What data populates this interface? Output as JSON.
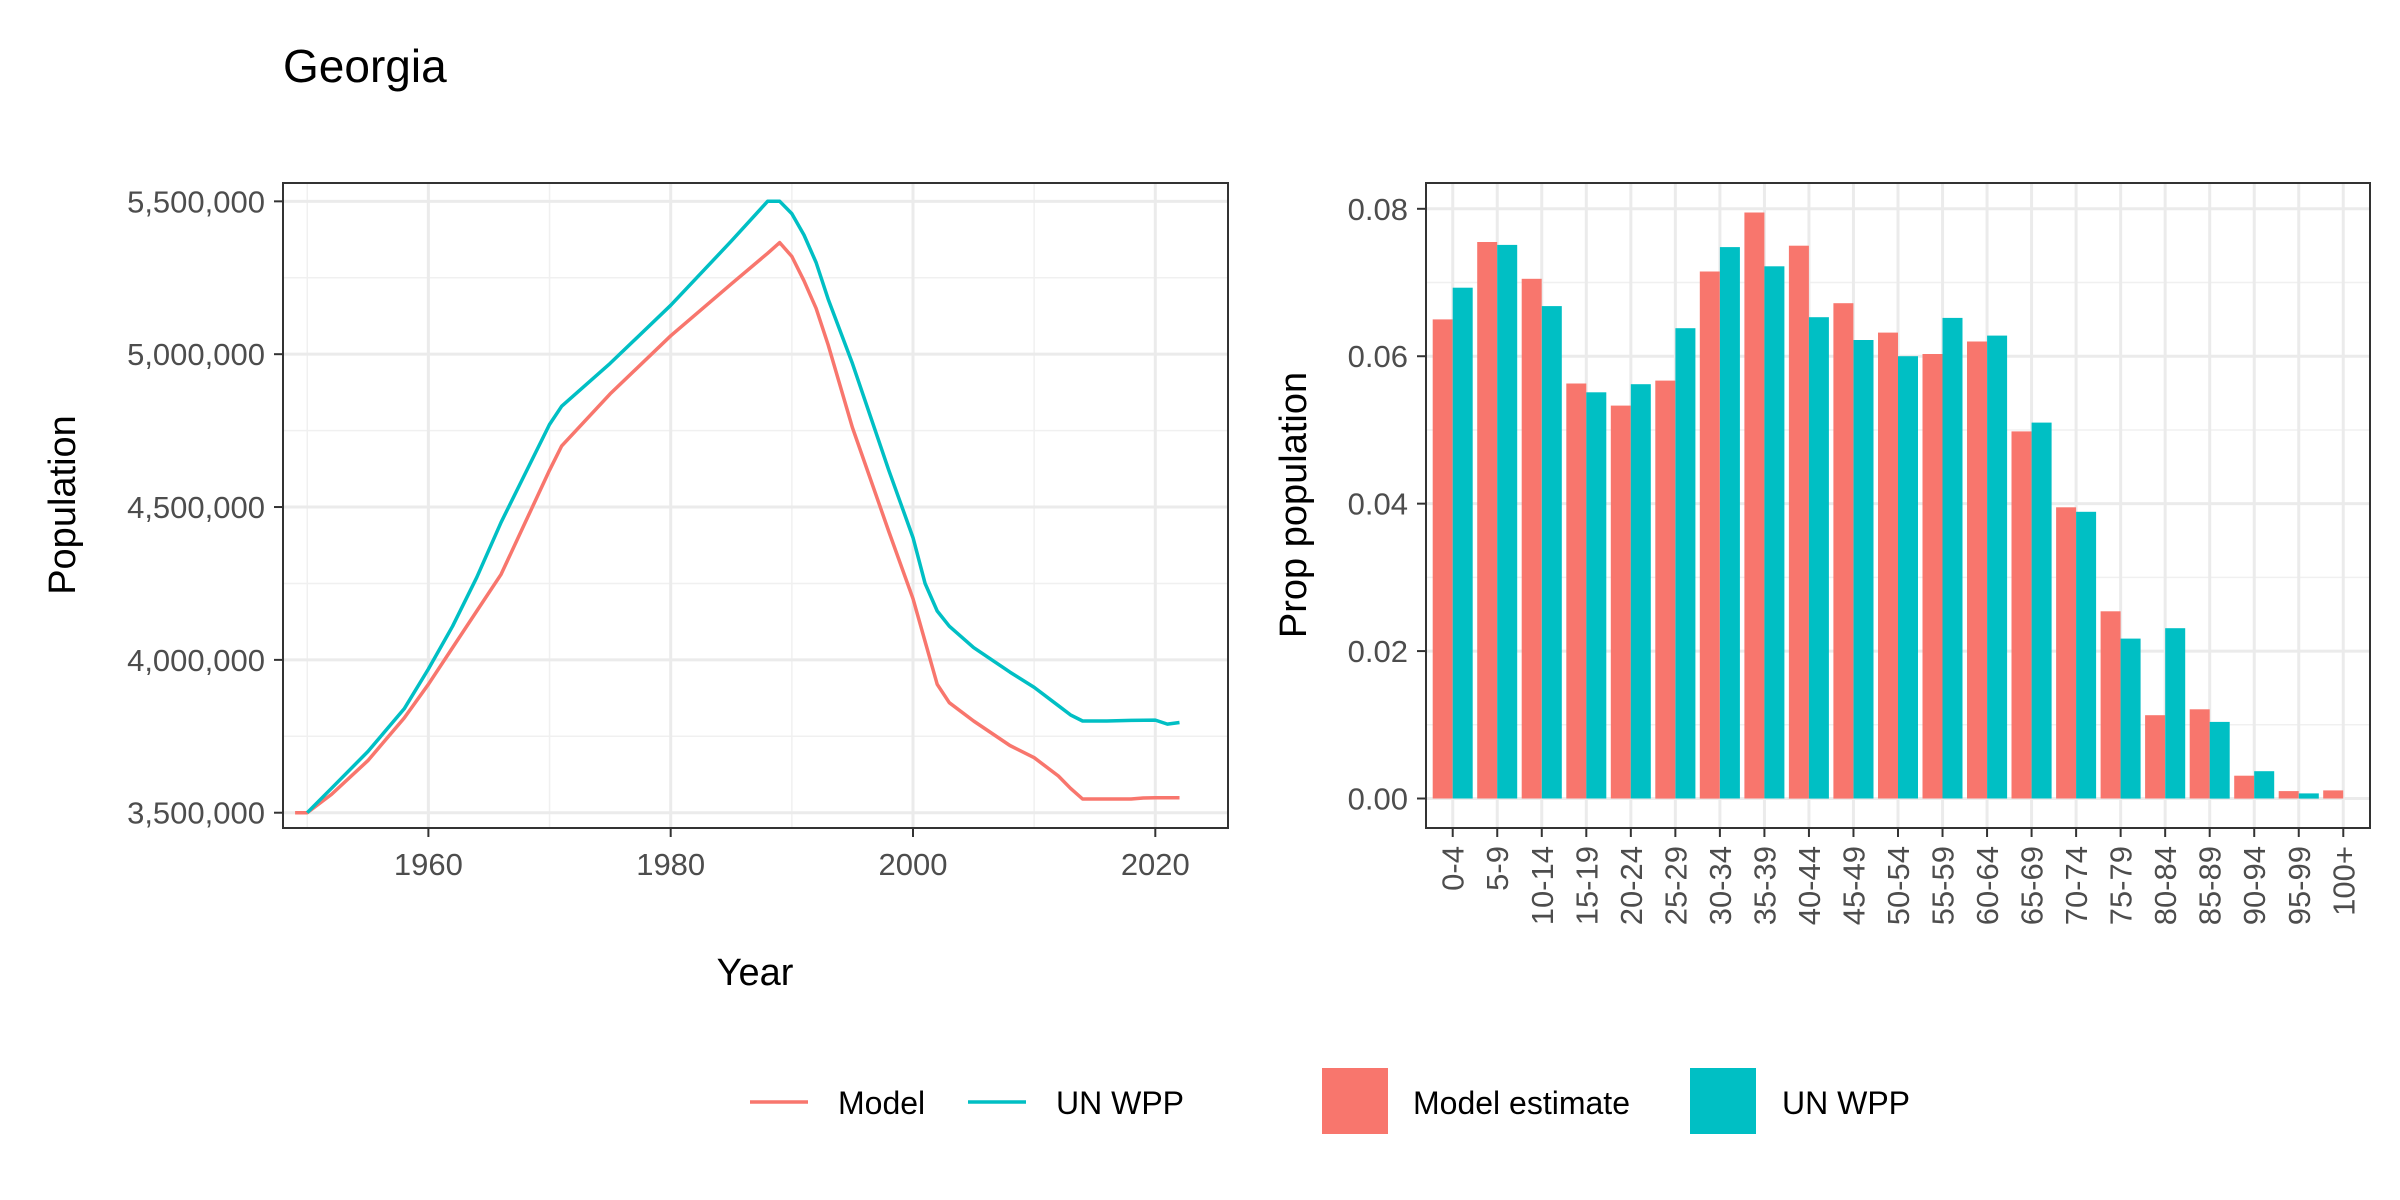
{
  "page": {
    "title": "Georgia"
  },
  "chart_data": [
    {
      "type": "line",
      "xlabel": "Year",
      "ylabel": "Population",
      "xlim": [
        1948,
        2026
      ],
      "ylim": [
        3450000,
        5560000
      ],
      "xticks": [
        1960,
        1980,
        2000,
        2020
      ],
      "xtick_labels": [
        "1960",
        "1980",
        "2000",
        "2020"
      ],
      "yticks": [
        3500000,
        4000000,
        4500000,
        5000000,
        5500000
      ],
      "ytick_labels": [
        "3,500,000",
        "4,000,000",
        "4,500,000",
        "5,000,000",
        "5,500,000"
      ],
      "grid": true,
      "legend_position": "bottom",
      "series": [
        {
          "name": "Model",
          "color": "#F8766D",
          "x": [
            1949,
            1950,
            1952,
            1955,
            1958,
            1960,
            1962,
            1964,
            1966,
            1968,
            1970,
            1971,
            1975,
            1980,
            1985,
            1988,
            1989,
            1990,
            1991,
            1992,
            1993,
            1995,
            1998,
            2000,
            2001,
            2002,
            2003,
            2005,
            2008,
            2010,
            2012,
            2013,
            2014,
            2016,
            2018,
            2019,
            2020,
            2021,
            2022
          ],
          "y": [
            3500000,
            3500000,
            3560000,
            3670000,
            3810000,
            3920000,
            4040000,
            4160000,
            4280000,
            4450000,
            4620000,
            4700000,
            4870000,
            5060000,
            5230000,
            5330000,
            5365000,
            5320000,
            5240000,
            5150000,
            5030000,
            4760000,
            4420000,
            4200000,
            4060000,
            3920000,
            3860000,
            3800000,
            3720000,
            3680000,
            3620000,
            3580000,
            3545000,
            3545000,
            3545000,
            3548000,
            3549000,
            3549000,
            3549000
          ]
        },
        {
          "name": "UN WPP",
          "color": "#00BFC4",
          "x": [
            1950,
            1952,
            1955,
            1958,
            1960,
            1962,
            1964,
            1966,
            1968,
            1970,
            1971,
            1975,
            1980,
            1985,
            1988,
            1989,
            1990,
            1991,
            1992,
            1993,
            1995,
            1998,
            2000,
            2001,
            2002,
            2003,
            2005,
            2008,
            2010,
            2012,
            2013,
            2014,
            2016,
            2018,
            2020,
            2021,
            2022
          ],
          "y": [
            3500000,
            3580000,
            3700000,
            3840000,
            3970000,
            4110000,
            4270000,
            4450000,
            4610000,
            4770000,
            4830000,
            4970000,
            5160000,
            5370000,
            5500000,
            5500000,
            5460000,
            5390000,
            5300000,
            5180000,
            4970000,
            4620000,
            4400000,
            4250000,
            4160000,
            4110000,
            4040000,
            3960000,
            3910000,
            3850000,
            3820000,
            3800000,
            3800000,
            3802000,
            3803000,
            3790000,
            3795000
          ]
        }
      ]
    },
    {
      "type": "bar",
      "xlabel": "",
      "ylabel": "Prop population",
      "ylim": [
        -0.004,
        0.0835
      ],
      "yticks": [
        0,
        0.02,
        0.04,
        0.06,
        0.08
      ],
      "ytick_labels": [
        "0.00",
        "0.02",
        "0.04",
        "0.06",
        "0.08"
      ],
      "grid": true,
      "legend_position": "bottom",
      "categories": [
        "0-4",
        "5-9",
        "10-14",
        "15-19",
        "20-24",
        "25-29",
        "30-34",
        "35-39",
        "40-44",
        "45-49",
        "50-54",
        "55-59",
        "60-64",
        "65-69",
        "70-74",
        "75-79",
        "80-84",
        "85-89",
        "90-94",
        "95-99",
        "100+"
      ],
      "series": [
        {
          "name": "Model estimate",
          "color": "#F8766D",
          "values": [
            0.065,
            0.0755,
            0.0705,
            0.0563,
            0.0533,
            0.0567,
            0.0715,
            0.0795,
            0.075,
            0.0672,
            0.0632,
            0.0603,
            0.062,
            0.0498,
            0.0395,
            0.0254,
            0.0113,
            0.0121,
            0.0031,
            0.001,
            0.0011
          ]
        },
        {
          "name": "UN WPP",
          "color": "#00BFC4",
          "values": [
            0.0693,
            0.0751,
            0.0668,
            0.0551,
            0.0562,
            0.0638,
            0.0748,
            0.0722,
            0.0653,
            0.0622,
            0.06,
            0.0652,
            0.0628,
            0.051,
            0.0389,
            0.0217,
            0.0231,
            0.0104,
            0.0037,
            0.0007,
            0
          ]
        }
      ]
    }
  ]
}
